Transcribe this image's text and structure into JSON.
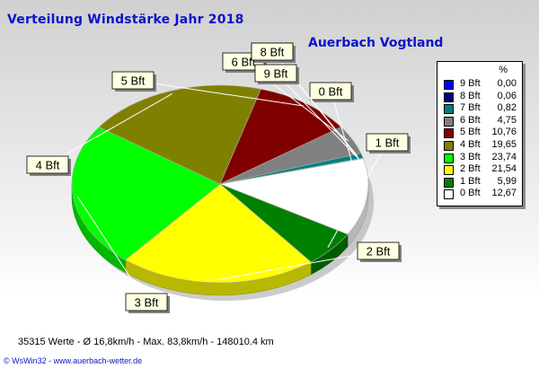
{
  "header": {
    "title": "Verteilung Windstärke  Jahr 2018",
    "location": "Auerbach Vogtland"
  },
  "legend": {
    "header": "%",
    "items": [
      {
        "label": "9 Bft",
        "value": "0,00",
        "color": "#0000ff"
      },
      {
        "label": "8 Bft",
        "value": "0,06",
        "color": "#000080"
      },
      {
        "label": "7 Bft",
        "value": "0,82",
        "color": "#008080"
      },
      {
        "label": "6 Bft",
        "value": "4,75",
        "color": "#808080"
      },
      {
        "label": "5 Bft",
        "value": "10,76",
        "color": "#800000"
      },
      {
        "label": "4 Bft",
        "value": "19,65",
        "color": "#808000"
      },
      {
        "label": "3 Bft",
        "value": "23,74",
        "color": "#00ff00"
      },
      {
        "label": "2 Bft",
        "value": "21,54",
        "color": "#ffff00"
      },
      {
        "label": "1 Bft",
        "value": "5,99",
        "color": "#008000"
      },
      {
        "label": "0 Bft",
        "value": "12,67",
        "color": "#ffffff"
      }
    ]
  },
  "footer": {
    "stats": "35315 Werte   -   Ø 16,8km/h  -  Max. 83,8km/h   -   148010.4 km",
    "credit": "© WsWin32  -  www.auerbach-wetter.de"
  },
  "chart_data": {
    "type": "pie",
    "title": "Verteilung Windstärke  Jahr 2018",
    "subtitle": "Auerbach Vogtland",
    "unit": "%",
    "slices": [
      {
        "label": "0 Bft",
        "value": 12.67,
        "color": "#ffffff"
      },
      {
        "label": "1 Bft",
        "value": 5.99,
        "color": "#008000"
      },
      {
        "label": "2 Bft",
        "value": 21.54,
        "color": "#ffff00"
      },
      {
        "label": "3 Bft",
        "value": 23.74,
        "color": "#00ff00"
      },
      {
        "label": "4 Bft",
        "value": 19.65,
        "color": "#808000"
      },
      {
        "label": "5 Bft",
        "value": 10.76,
        "color": "#800000"
      },
      {
        "label": "6 Bft",
        "value": 4.75,
        "color": "#808080"
      },
      {
        "label": "7 Bft",
        "value": 0.82,
        "color": "#008080"
      },
      {
        "label": "8 Bft",
        "value": 0.06,
        "color": "#000080"
      },
      {
        "label": "9 Bft",
        "value": 0.0,
        "color": "#0000ff"
      }
    ]
  }
}
